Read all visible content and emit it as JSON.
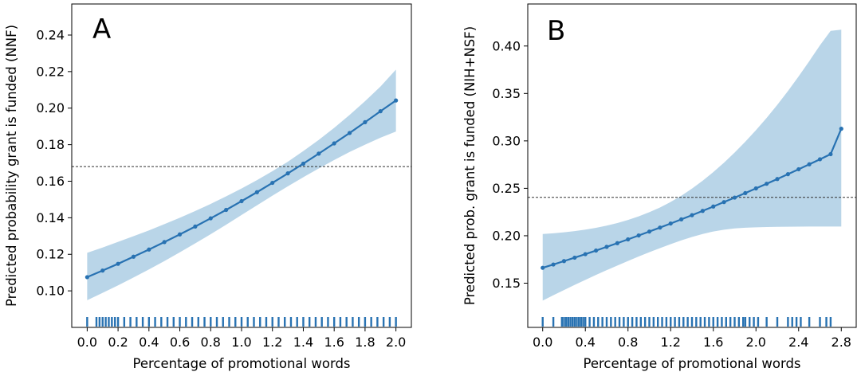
{
  "chart_data": [
    {
      "type": "line",
      "panel_label": "A",
      "xlabel": "Percentage of promotional words",
      "ylabel": "Predicted probability grant is funded (NNF)",
      "xlim": [
        -0.1,
        2.1
      ],
      "ylim": [
        0.08,
        0.257
      ],
      "x_ticks": [
        "0.0",
        "0.2",
        "0.4",
        "0.6",
        "0.8",
        "1.0",
        "1.2",
        "1.4",
        "1.6",
        "1.8",
        "2.0"
      ],
      "y_ticks": [
        "0.10",
        "0.12",
        "0.14",
        "0.16",
        "0.18",
        "0.20",
        "0.22",
        "0.24"
      ],
      "reference_line_y": 0.168,
      "colors": {
        "line": "#2872b2",
        "band": "#b9d5e8",
        "reference": "#333333"
      },
      "series": [
        {
          "x": [
            0.0,
            0.1,
            0.2,
            0.3,
            0.4,
            0.5,
            0.6,
            0.7,
            0.8,
            0.9,
            1.0,
            1.1,
            1.2,
            1.3,
            1.4,
            1.5,
            1.6,
            1.7,
            1.8,
            1.9,
            2.0
          ],
          "y": [
            0.1075,
            0.1111,
            0.1148,
            0.1187,
            0.1226,
            0.1267,
            0.1309,
            0.1352,
            0.1397,
            0.1443,
            0.1491,
            0.154,
            0.1591,
            0.1643,
            0.1696,
            0.1751,
            0.1807,
            0.1864,
            0.1923,
            0.1983,
            0.2042
          ],
          "ci_lower": [
            0.0949,
            0.0989,
            0.103,
            0.1073,
            0.1117,
            0.1163,
            0.1211,
            0.126,
            0.131,
            0.1362,
            0.1415,
            0.1468,
            0.1521,
            0.1572,
            0.1622,
            0.167,
            0.1716,
            0.176,
            0.18,
            0.1838,
            0.1872
          ],
          "ci_upper": [
            0.1208,
            0.1237,
            0.1268,
            0.1299,
            0.1331,
            0.1365,
            0.14,
            0.1437,
            0.1476,
            0.1517,
            0.156,
            0.1606,
            0.1655,
            0.1707,
            0.1765,
            0.1826,
            0.1892,
            0.1963,
            0.2038,
            0.2118,
            0.2211
          ]
        }
      ],
      "rug_x": [
        0.0,
        0.06,
        0.08,
        0.1,
        0.12,
        0.14,
        0.16,
        0.18,
        0.2,
        0.24,
        0.28,
        0.32,
        0.36,
        0.4,
        0.44,
        0.48,
        0.52,
        0.56,
        0.6,
        0.64,
        0.68,
        0.72,
        0.76,
        0.8,
        0.84,
        0.88,
        0.92,
        0.96,
        1.0,
        1.04,
        1.08,
        1.12,
        1.16,
        1.2,
        1.24,
        1.28,
        1.32,
        1.36,
        1.4,
        1.44,
        1.48,
        1.52,
        1.56,
        1.6,
        1.64,
        1.68,
        1.72,
        1.76,
        1.8,
        1.84,
        1.88,
        1.92,
        1.96,
        2.0
      ]
    },
    {
      "type": "line",
      "panel_label": "B",
      "xlabel": "Percentage of promotional words",
      "ylabel": "Predicted prob. grant is funded (NIH+NSF)",
      "xlim": [
        -0.14,
        2.94
      ],
      "ylim": [
        0.1034,
        0.4443
      ],
      "x_ticks": [
        "0.0",
        "0.4",
        "0.8",
        "1.2",
        "1.6",
        "2.0",
        "2.4",
        "2.8"
      ],
      "y_ticks": [
        "0.15",
        "0.20",
        "0.25",
        "0.30",
        "0.35",
        "0.40"
      ],
      "reference_line_y": 0.2405,
      "colors": {
        "line": "#2872b2",
        "band": "#b9d5e8",
        "reference": "#333333"
      },
      "series": [
        {
          "x": [
            0.0,
            0.1,
            0.2,
            0.3,
            0.4,
            0.5,
            0.6,
            0.7,
            0.8,
            0.9,
            1.0,
            1.1,
            1.2,
            1.3,
            1.4,
            1.5,
            1.6,
            1.7,
            1.8,
            1.9,
            2.0,
            2.1,
            2.2,
            2.3,
            2.4,
            2.5,
            2.6,
            2.7,
            2.8
          ],
          "y": [
            0.1662,
            0.1697,
            0.1733,
            0.1769,
            0.1806,
            0.1844,
            0.1883,
            0.1922,
            0.1962,
            0.2003,
            0.2044,
            0.2086,
            0.2129,
            0.2173,
            0.2217,
            0.2262,
            0.2308,
            0.2355,
            0.2402,
            0.245,
            0.2499,
            0.2548,
            0.2598,
            0.2649,
            0.2701,
            0.2753,
            0.2806,
            0.286,
            0.3128
          ],
          "ci_lower": [
            0.1316,
            0.1373,
            0.1428,
            0.1482,
            0.1535,
            0.1587,
            0.1637,
            0.1686,
            0.1734,
            0.1781,
            0.1826,
            0.1869,
            0.1911,
            0.1951,
            0.1987,
            0.2019,
            0.2045,
            0.2064,
            0.2077,
            0.2085,
            0.2089,
            0.2092,
            0.2094,
            0.2095,
            0.2096,
            0.2097,
            0.2097,
            0.2097,
            0.2097
          ],
          "ci_upper": [
            0.2018,
            0.2026,
            0.2036,
            0.2049,
            0.2065,
            0.2084,
            0.2107,
            0.2134,
            0.2166,
            0.2204,
            0.2248,
            0.2298,
            0.2356,
            0.2422,
            0.2497,
            0.258,
            0.2671,
            0.277,
            0.2877,
            0.2991,
            0.3113,
            0.3242,
            0.338,
            0.3526,
            0.368,
            0.3841,
            0.4007,
            0.416,
            0.4172
          ]
        }
      ],
      "rug_x": [
        0.0,
        0.1,
        0.18,
        0.2,
        0.22,
        0.24,
        0.26,
        0.28,
        0.3,
        0.32,
        0.34,
        0.36,
        0.38,
        0.4,
        0.44,
        0.48,
        0.52,
        0.56,
        0.6,
        0.64,
        0.68,
        0.72,
        0.76,
        0.8,
        0.84,
        0.88,
        0.92,
        0.96,
        1.0,
        1.04,
        1.08,
        1.12,
        1.16,
        1.2,
        1.24,
        1.28,
        1.32,
        1.36,
        1.4,
        1.44,
        1.48,
        1.52,
        1.56,
        1.6,
        1.64,
        1.68,
        1.72,
        1.76,
        1.8,
        1.84,
        1.88,
        1.9,
        1.94,
        1.98,
        2.02,
        2.1,
        2.2,
        2.3,
        2.34,
        2.38,
        2.42,
        2.5,
        2.6,
        2.66,
        2.7
      ]
    }
  ]
}
